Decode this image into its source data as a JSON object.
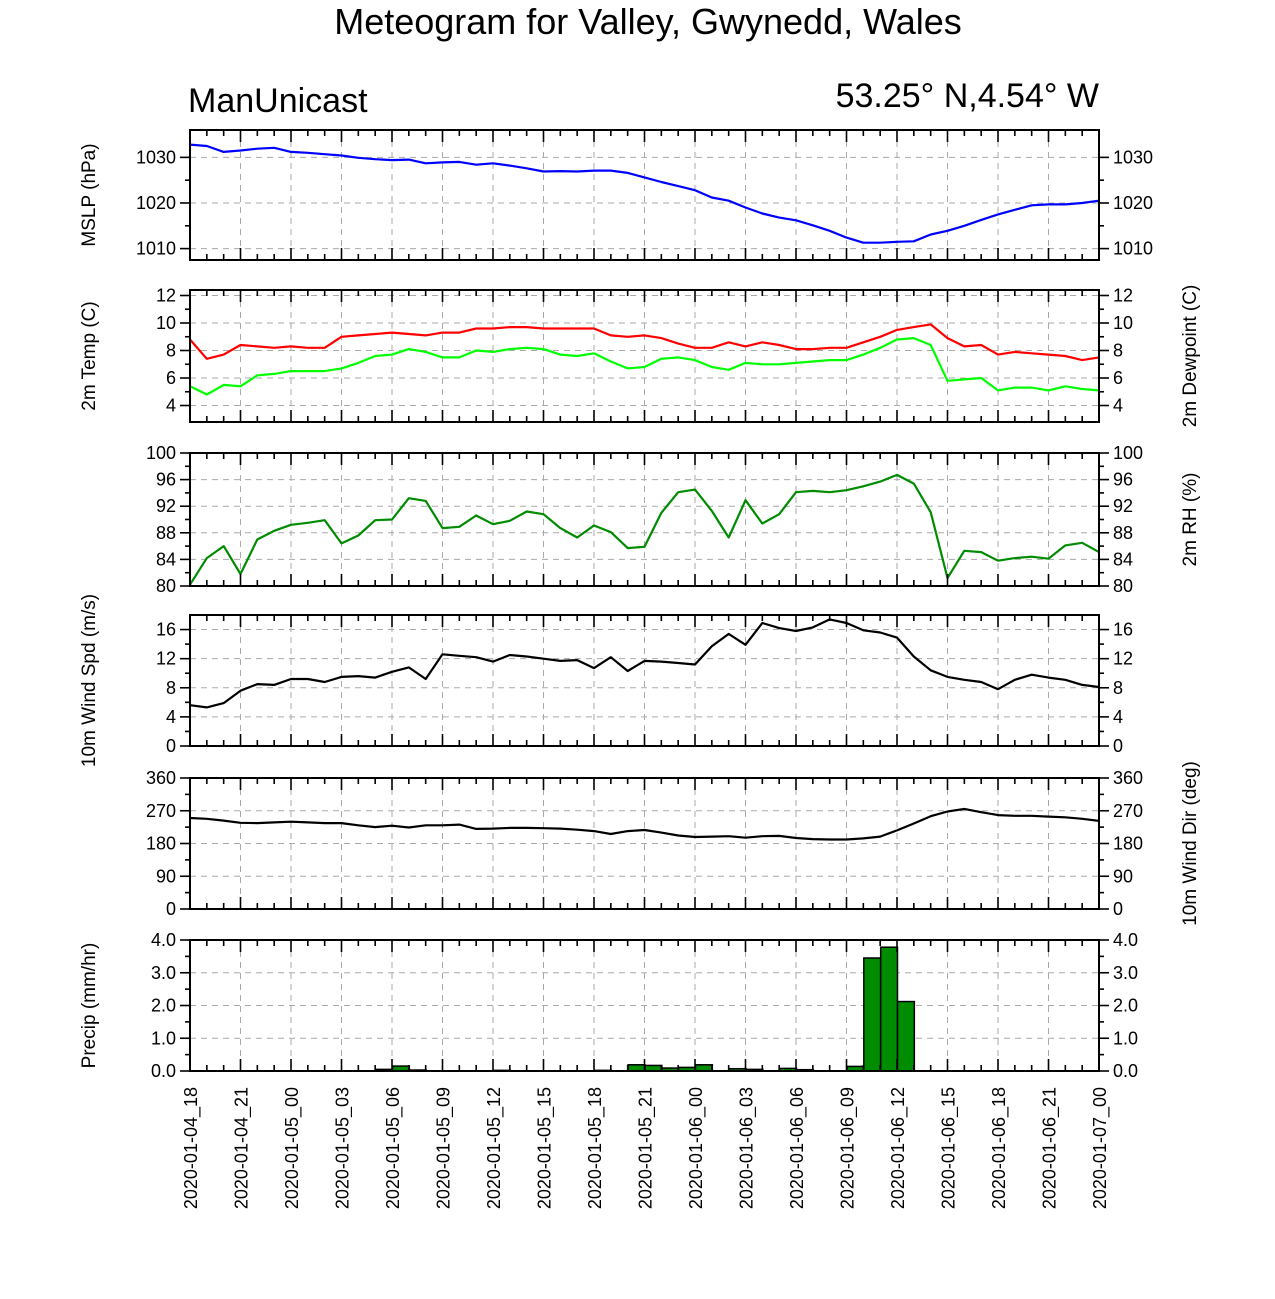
{
  "title": "Meteogram for Valley, Gwynedd, Wales",
  "model": "ManUnicast",
  "location": "53.25° N,4.54° W",
  "chart_data": {
    "type": "line",
    "x": [
      "2020-01-04_18",
      "2020-01-04_19",
      "2020-01-04_20",
      "2020-01-04_21",
      "2020-01-04_22",
      "2020-01-04_23",
      "2020-01-05_00",
      "2020-01-05_01",
      "2020-01-05_02",
      "2020-01-05_03",
      "2020-01-05_04",
      "2020-01-05_05",
      "2020-01-05_06",
      "2020-01-05_07",
      "2020-01-05_08",
      "2020-01-05_09",
      "2020-01-05_10",
      "2020-01-05_11",
      "2020-01-05_12",
      "2020-01-05_13",
      "2020-01-05_14",
      "2020-01-05_15",
      "2020-01-05_16",
      "2020-01-05_17",
      "2020-01-05_18",
      "2020-01-05_19",
      "2020-01-05_20",
      "2020-01-05_21",
      "2020-01-05_22",
      "2020-01-05_23",
      "2020-01-06_00",
      "2020-01-06_01",
      "2020-01-06_02",
      "2020-01-06_03",
      "2020-01-06_04",
      "2020-01-06_05",
      "2020-01-06_06",
      "2020-01-06_07",
      "2020-01-06_08",
      "2020-01-06_09",
      "2020-01-06_10",
      "2020-01-06_11",
      "2020-01-06_12",
      "2020-01-06_13",
      "2020-01-06_14",
      "2020-01-06_15",
      "2020-01-06_16",
      "2020-01-06_17",
      "2020-01-06_18",
      "2020-01-06_19",
      "2020-01-06_20",
      "2020-01-06_21",
      "2020-01-06_22",
      "2020-01-06_23",
      "2020-01-07_00"
    ],
    "x_tick_labels": [
      "2020-01-04_18",
      "2020-01-04_21",
      "2020-01-05_00",
      "2020-01-05_03",
      "2020-01-05_06",
      "2020-01-05_09",
      "2020-01-05_12",
      "2020-01-05_15",
      "2020-01-05_18",
      "2020-01-05_21",
      "2020-01-06_00",
      "2020-01-06_03",
      "2020-01-06_06",
      "2020-01-06_09",
      "2020-01-06_12",
      "2020-01-06_15",
      "2020-01-06_18",
      "2020-01-06_21",
      "2020-01-07_00"
    ],
    "grid": true,
    "panels": [
      {
        "id": "mslp",
        "ylabel_left": "MSLP (hPa)",
        "ylabel_right": "",
        "ylim": [
          1007.5,
          1036
        ],
        "yticks": [
          1010,
          1020,
          1030
        ],
        "ytick_labels": [
          "1010",
          "1020",
          "1030"
        ],
        "series": [
          {
            "color": "#0000ff",
            "values": [
              1032.8,
              1032.5,
              1031.2,
              1031.5,
              1031.9,
              1032.1,
              1031.2,
              1031.0,
              1030.7,
              1030.4,
              1029.9,
              1029.6,
              1029.4,
              1029.5,
              1028.7,
              1028.9,
              1029.0,
              1028.4,
              1028.7,
              1028.2,
              1027.6,
              1026.9,
              1027.0,
              1026.9,
              1027.1,
              1027.1,
              1026.6,
              1025.6,
              1024.6,
              1023.7,
              1022.8,
              1021.2,
              1020.5,
              1019.0,
              1017.7,
              1016.8,
              1016.2,
              1015.1,
              1013.9,
              1012.4,
              1011.3,
              1011.3,
              1011.5,
              1011.6,
              1013.1,
              1013.9,
              1015.0,
              1016.3,
              1017.5,
              1018.5,
              1019.5,
              1019.7,
              1019.7,
              1020.0,
              1020.5
            ]
          }
        ]
      },
      {
        "id": "temp",
        "ylabel_left": "2m Temp (C)",
        "ylabel_right": "2m Dewpoint (C)",
        "ylim": [
          2.8,
          12.4
        ],
        "yticks": [
          4,
          6,
          8,
          10,
          12
        ],
        "ytick_labels": [
          "4",
          "6",
          "8",
          "10",
          "12"
        ],
        "series": [
          {
            "color": "#ff0000",
            "values": [
              8.8,
              7.4,
              7.7,
              8.4,
              8.3,
              8.2,
              8.3,
              8.2,
              8.2,
              9.0,
              9.1,
              9.2,
              9.3,
              9.2,
              9.1,
              9.3,
              9.3,
              9.6,
              9.6,
              9.7,
              9.7,
              9.6,
              9.6,
              9.6,
              9.6,
              9.1,
              9.0,
              9.1,
              8.9,
              8.5,
              8.2,
              8.2,
              8.6,
              8.3,
              8.6,
              8.4,
              8.1,
              8.1,
              8.2,
              8.2,
              8.6,
              9.0,
              9.5,
              9.7,
              9.9,
              8.9,
              8.3,
              8.4,
              7.7,
              7.9,
              7.8,
              7.7,
              7.6,
              7.3,
              7.5
            ]
          },
          {
            "color": "#00ff00",
            "values": [
              5.4,
              4.8,
              5.5,
              5.4,
              6.2,
              6.3,
              6.5,
              6.5,
              6.5,
              6.7,
              7.1,
              7.6,
              7.7,
              8.1,
              7.9,
              7.5,
              7.5,
              8.0,
              7.9,
              8.1,
              8.2,
              8.1,
              7.7,
              7.6,
              7.8,
              7.2,
              6.7,
              6.8,
              7.4,
              7.5,
              7.3,
              6.8,
              6.6,
              7.1,
              7.0,
              7.0,
              7.1,
              7.2,
              7.3,
              7.3,
              7.7,
              8.2,
              8.8,
              8.9,
              8.4,
              5.8,
              5.9,
              6.0,
              5.1,
              5.3,
              5.3,
              5.1,
              5.4,
              5.2,
              5.1
            ]
          }
        ]
      },
      {
        "id": "rh",
        "ylabel_left": "",
        "ylabel_right": "2m RH (%)",
        "ylim": [
          80,
          100
        ],
        "yticks": [
          80,
          84,
          88,
          92,
          96,
          100
        ],
        "ytick_labels": [
          "80",
          "84",
          "88",
          "92",
          "96",
          "100"
        ],
        "series": [
          {
            "color": "#008c00",
            "values": [
              80.2,
              84.2,
              86.0,
              81.8,
              87.0,
              88.3,
              89.2,
              89.5,
              89.9,
              86.4,
              87.6,
              89.9,
              90.0,
              93.2,
              92.8,
              88.7,
              88.9,
              90.6,
              89.3,
              89.8,
              91.2,
              90.8,
              88.7,
              87.3,
              89.1,
              88.1,
              85.7,
              85.9,
              91.0,
              94.1,
              94.5,
              91.3,
              87.3,
              92.9,
              89.4,
              90.8,
              94.1,
              94.3,
              94.1,
              94.4,
              95.0,
              95.7,
              96.7,
              95.4,
              91.1,
              81.2,
              85.3,
              85.1,
              83.8,
              84.2,
              84.4,
              84.1,
              86.1,
              86.5,
              85.1
            ]
          }
        ]
      },
      {
        "id": "wspd",
        "ylabel_left": "10m Wind Spd (m/s)",
        "ylabel_right": "",
        "ylim": [
          0,
          18
        ],
        "yticks": [
          0,
          4,
          8,
          12,
          16
        ],
        "ytick_labels": [
          "0",
          "4",
          "8",
          "12",
          "16"
        ],
        "series": [
          {
            "color": "#000000",
            "values": [
              5.6,
              5.3,
              5.9,
              7.6,
              8.5,
              8.4,
              9.2,
              9.2,
              8.8,
              9.5,
              9.6,
              9.4,
              10.2,
              10.8,
              9.2,
              12.6,
              12.4,
              12.2,
              11.6,
              12.5,
              12.3,
              12.0,
              11.7,
              11.8,
              10.7,
              12.2,
              10.3,
              11.7,
              11.6,
              11.4,
              11.2,
              13.7,
              15.4,
              13.9,
              16.9,
              16.2,
              15.8,
              16.3,
              17.4,
              16.9,
              15.9,
              15.6,
              14.9,
              12.3,
              10.4,
              9.5,
              9.1,
              8.8,
              7.8,
              9.1,
              9.8,
              9.4,
              9.1,
              8.4,
              8.1
            ]
          }
        ]
      },
      {
        "id": "wdir",
        "ylabel_left": "",
        "ylabel_right": "10m Wind Dir (deg)",
        "ylim": [
          0,
          360
        ],
        "yticks": [
          0,
          90,
          180,
          270,
          360
        ],
        "ytick_labels": [
          "0",
          "90",
          "180",
          "270",
          "360"
        ],
        "series": [
          {
            "color": "#000000",
            "values": [
              250,
              248,
              243,
              237,
              236,
              238,
              240,
              238,
              236,
              236,
              230,
              225,
              229,
              224,
              230,
              230,
              232,
              220,
              221,
              223,
              223,
              222,
              221,
              218,
              214,
              206,
              214,
              217,
              210,
              202,
              198,
              199,
              200,
              196,
              200,
              201,
              195,
              192,
              191,
              191,
              194,
              199,
              216,
              235,
              255,
              268,
              275,
              266,
              258,
              256,
              256,
              254,
              252,
              248,
              242
            ]
          }
        ]
      },
      {
        "id": "precip",
        "type": "bar",
        "ylabel_left": "Precip (mm/hr)",
        "ylabel_right": "",
        "ylim": [
          0,
          4.0
        ],
        "yticks": [
          0,
          1,
          2,
          3,
          4
        ],
        "ytick_labels": [
          "0.0",
          "1.0",
          "2.0",
          "3.0",
          "4.0"
        ],
        "color": "#008c00",
        "values": [
          0,
          0,
          0,
          0,
          0,
          0,
          0,
          0,
          0,
          0,
          0,
          0.05,
          0.15,
          0.03,
          0,
          0,
          0,
          0,
          0.02,
          0,
          0,
          0,
          0,
          0,
          0.02,
          0,
          0.19,
          0.17,
          0.09,
          0.11,
          0.19,
          0,
          0.07,
          0.05,
          0,
          0.08,
          0.04,
          0,
          0,
          0.14,
          3.45,
          3.78,
          2.12,
          0,
          0,
          0,
          0,
          0,
          0,
          0,
          0,
          0,
          0,
          0
        ]
      }
    ]
  }
}
